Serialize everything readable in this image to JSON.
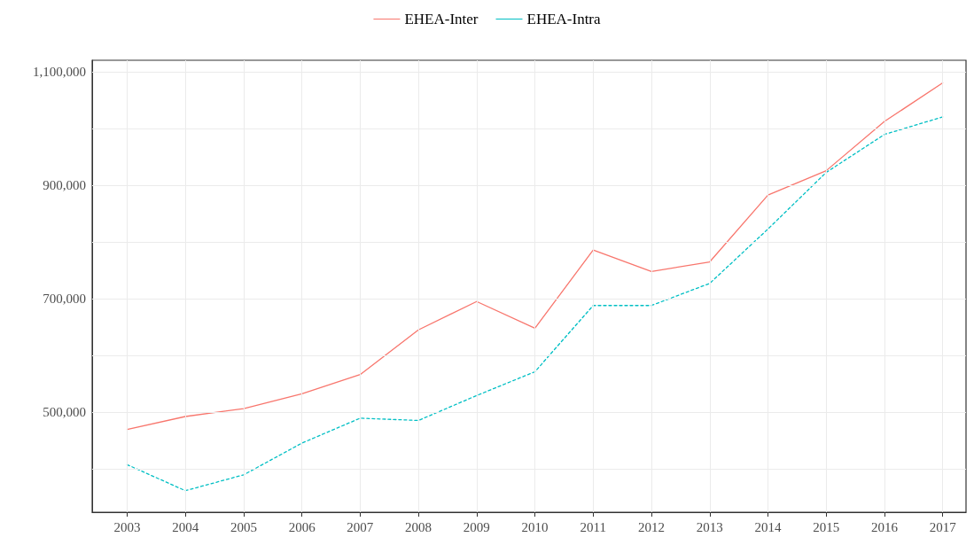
{
  "chart_data": {
    "type": "line",
    "x": [
      2003,
      2004,
      2005,
      2006,
      2007,
      2008,
      2009,
      2010,
      2011,
      2012,
      2013,
      2014,
      2015,
      2016,
      2017
    ],
    "series": [
      {
        "name": "EHEA-Inter",
        "color": "#f8766d",
        "line_style": "solid",
        "values": [
          469000,
          492000,
          506000,
          532000,
          566000,
          645000,
          695000,
          648000,
          786000,
          748000,
          765000,
          883000,
          926000,
          1013000,
          1081000
        ]
      },
      {
        "name": "EHEA-Intra",
        "color": "#00bfc4",
        "line_style": "dotted",
        "values": [
          407000,
          361000,
          389000,
          445000,
          489000,
          485000,
          529000,
          571000,
          688000,
          688000,
          727000,
          823000,
          923000,
          990000,
          1021000
        ]
      }
    ],
    "xlim": [
      2002.4,
      2017.4
    ],
    "xticks": [
      2003,
      2004,
      2005,
      2006,
      2007,
      2008,
      2009,
      2010,
      2011,
      2012,
      2013,
      2014,
      2015,
      2016,
      2017
    ],
    "ylim": [
      323000,
      1121000
    ],
    "yticks": [
      {
        "value": 400000,
        "label": null
      },
      {
        "value": 500000,
        "label": "500,000"
      },
      {
        "value": 600000,
        "label": null
      },
      {
        "value": 700000,
        "label": "700,000"
      },
      {
        "value": 800000,
        "label": null
      },
      {
        "value": 900000,
        "label": "900,000"
      },
      {
        "value": 1000000,
        "label": null
      },
      {
        "value": 1100000,
        "label": "1,100,000"
      }
    ],
    "grid": true,
    "legend": "top",
    "marker": "none"
  }
}
